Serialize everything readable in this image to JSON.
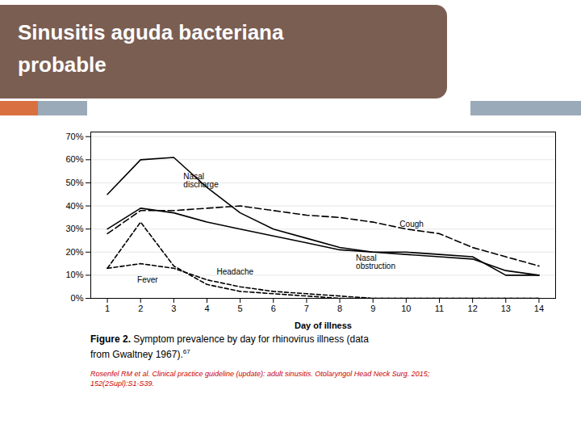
{
  "chart_data": {
    "type": "line",
    "title": "Sinusitis aguda bacteriana\nprobable",
    "x_label": "Day of illness",
    "x": [
      1,
      2,
      3,
      4,
      5,
      6,
      7,
      8,
      9,
      10,
      11,
      12,
      13,
      14
    ],
    "xlim": [
      0.5,
      14.5
    ],
    "xticks": [
      1,
      2,
      3,
      4,
      5,
      6,
      7,
      8,
      9,
      10,
      11,
      12,
      13,
      14
    ],
    "ylim": [
      0.0,
      0.72
    ],
    "yticks": [
      {
        "value": 0.0,
        "label": "0%"
      },
      {
        "value": 0.1,
        "label": "10%"
      },
      {
        "value": 0.2,
        "label": "20%"
      },
      {
        "value": 0.3,
        "label": "30%"
      },
      {
        "value": 0.4,
        "label": "40%"
      },
      {
        "value": 0.5,
        "label": "50%"
      },
      {
        "value": 0.6,
        "label": "60%"
      },
      {
        "value": 0.7,
        "label": "70%"
      }
    ],
    "grid": true,
    "series": [
      {
        "name": "Nasal\ndischarge",
        "color": "#000000",
        "line_style": "solid",
        "values": [
          0.45,
          0.6,
          0.61,
          0.48,
          0.37,
          0.3,
          0.26,
          0.22,
          0.2,
          0.19,
          0.18,
          0.17,
          0.12,
          0.1
        ]
      },
      {
        "name": "Cough",
        "color": "#000000",
        "line_style": "long_dash",
        "values": [
          0.28,
          0.38,
          0.38,
          0.39,
          0.4,
          0.38,
          0.36,
          0.35,
          0.33,
          0.3,
          0.28,
          0.22,
          0.18,
          0.14
        ]
      },
      {
        "name": "Nasal\nobstruction",
        "color": "#000000",
        "line_style": "solid",
        "values": [
          0.3,
          0.39,
          0.37,
          0.33,
          0.3,
          0.27,
          0.24,
          0.21,
          0.2,
          0.2,
          0.19,
          0.18,
          0.1,
          0.1
        ]
      },
      {
        "name": "Headache",
        "color": "#000000",
        "line_style": "short_dash",
        "values": [
          0.13,
          0.15,
          0.13,
          0.08,
          0.05,
          0.03,
          0.02,
          0.01,
          0.0,
          0.0,
          0.0,
          0.0,
          0.0,
          0.0
        ]
      },
      {
        "name": "Fever",
        "color": "#000000",
        "line_style": "short_dash",
        "values": [
          0.13,
          0.33,
          0.14,
          0.06,
          0.03,
          0.02,
          0.01,
          0.0,
          0.0,
          0.0,
          0.0,
          0.0,
          0.0,
          0.0
        ]
      }
    ],
    "caption": [
      "Figure 2.",
      " Symptom prevalence by day for rhinovirus illness (data\nfrom Gwaltney 1967).",
      "67"
    ],
    "source": "Rosenfel RM et al. Clinical practice guideline (update): adult sinusitis. Otolaryngol Head Neck Surg. 2015;\n152(2Supl):S1-S39."
  }
}
